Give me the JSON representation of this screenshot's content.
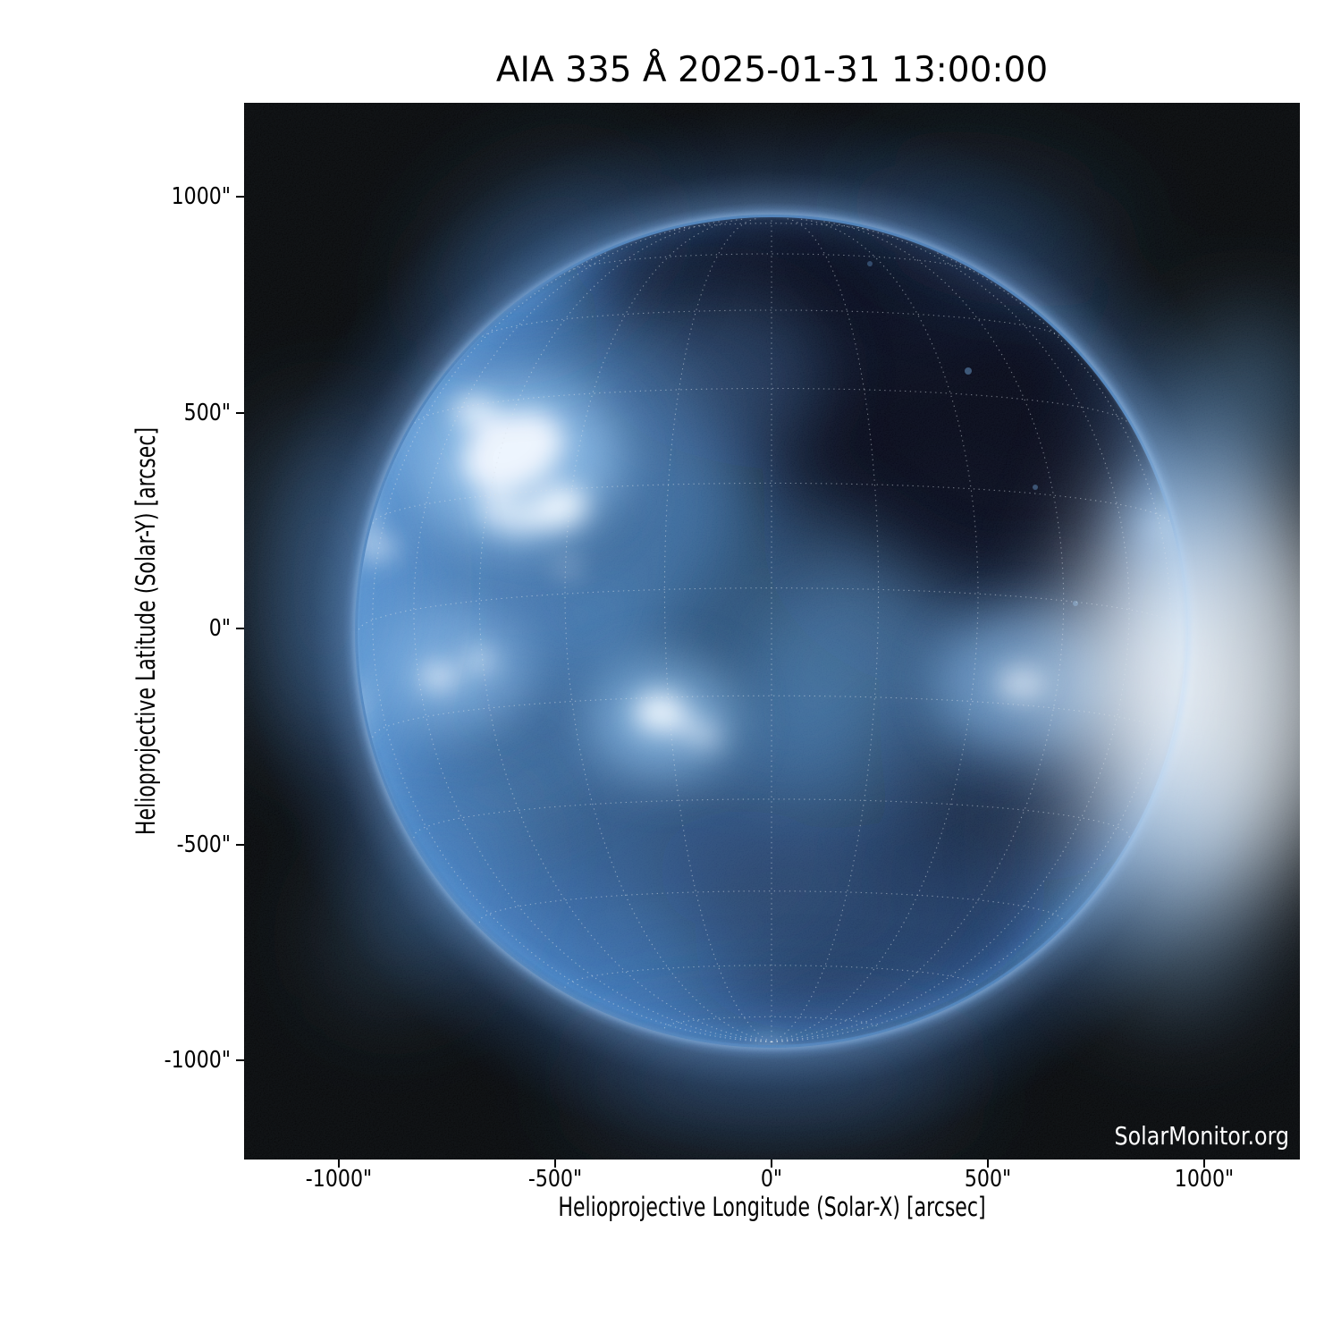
{
  "figure": {
    "title": "AIA 335 Å 2025-01-31 13:00:00",
    "watermark": "SolarMonitor.org"
  },
  "axes": {
    "x": {
      "label": "Helioprojective Longitude (Solar-X) [arcsec]",
      "ticks": [
        "-1000\"",
        "-500\"",
        "0\"",
        "500\"",
        "1000\""
      ]
    },
    "y": {
      "label": "Helioprojective Latitude (Solar-Y) [arcsec]",
      "ticks": [
        "1000\"",
        "500\"",
        "0\"",
        "-500\"",
        "-1000\""
      ]
    }
  },
  "colors": {
    "figure_background": "#ffffff",
    "plot_background": "#000000",
    "corona_blue": "#4f8ac8",
    "limb_highlight": "#cfe3f7",
    "grid_dots": "#d8dfe8",
    "axis_text": "#000000",
    "watermark_text": "#ffffff"
  },
  "chart_data": {
    "type": "heatmap",
    "title": "AIA 335 Å 2025-01-31 13:00:00",
    "xlabel": "Helioprojective Longitude (Solar-X) [arcsec]",
    "ylabel": "Helioprojective Latitude (Solar-Y) [arcsec]",
    "x_ticks_arcsec": [
      -1000,
      -500,
      0,
      500,
      1000
    ],
    "y_ticks_arcsec": [
      1000,
      500,
      0,
      -500,
      -1000
    ],
    "xlim_arcsec": [
      -1220,
      1220
    ],
    "ylim_arcsec": [
      -1220,
      1220
    ],
    "colormap": "SDO/AIA 335 blue on black",
    "solar_disk": {
      "center_arcsec": [
        0,
        0
      ],
      "radius_arcsec": 960
    },
    "overlay_grid": "heliographic lat/lon dotted grid, ~15 deg spacing, south pole visible on disk",
    "visible_features": [
      "very bright active-region complex in the upper-left (north-east) quadrant",
      "bright active regions left of and just below disk center",
      "moderate active region on the western hemisphere right of center",
      "large dark coronal hole from disk center toward the north and west",
      "strong limb brightening and white streamers off the west (right) limb",
      "faint blue corona glow ring around the entire limb"
    ]
  }
}
